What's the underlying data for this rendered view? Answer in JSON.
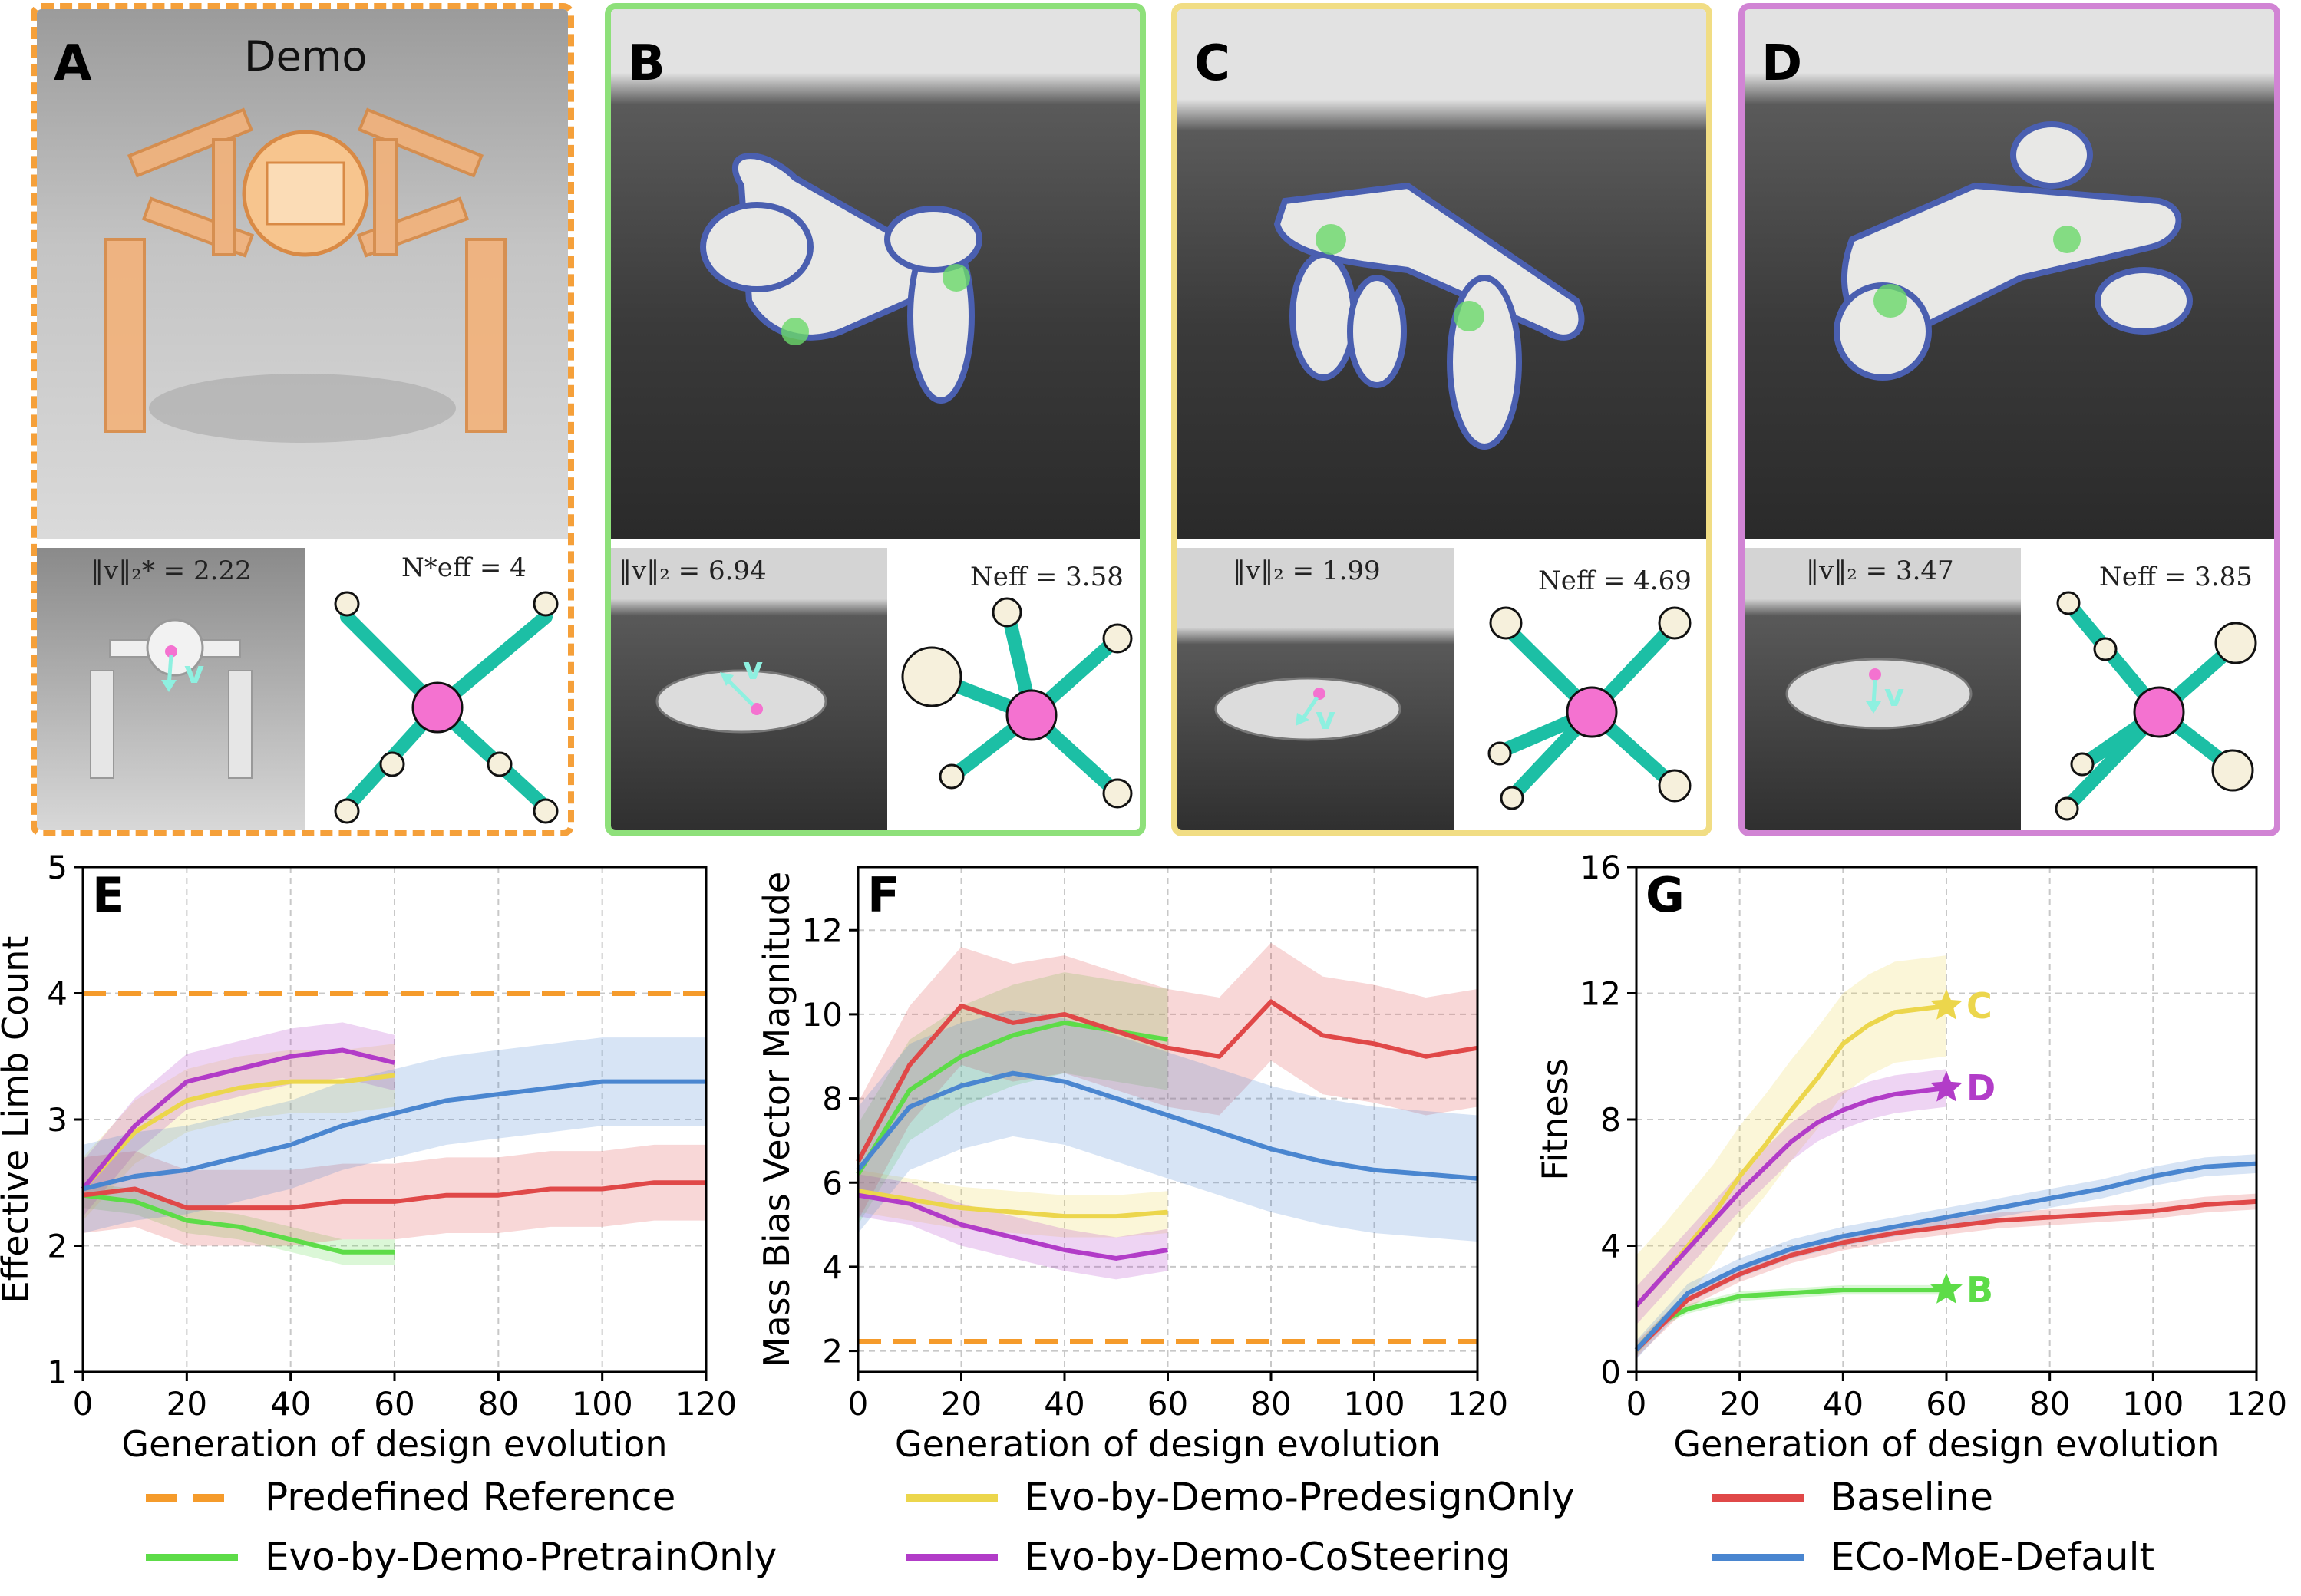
{
  "panels": {
    "A": {
      "label": "A",
      "title": "Demo",
      "metric_v": "‖v‖₂* = 2.22",
      "metric_n": "N*eff = 4",
      "vec": "v"
    },
    "B": {
      "label": "B",
      "metric_v": "‖v‖₂ = 6.94",
      "metric_n": "Neff = 3.58",
      "vec": "v"
    },
    "C": {
      "label": "C",
      "metric_v": "‖v‖₂ = 1.99",
      "metric_n": "Neff = 4.69",
      "vec": "v"
    },
    "D": {
      "label": "D",
      "metric_v": "‖v‖₂ = 3.47",
      "metric_n": "Neff = 3.85",
      "vec": "v"
    }
  },
  "colors": {
    "reference": "#f59b2b",
    "pretrain": "#5ddc48",
    "predesign": "#ecd64c",
    "costeering": "#b23cc8",
    "baseline": "#e04848",
    "default": "#4a86d0",
    "limb": "#1cbfa5",
    "body": "#f472d0"
  },
  "legend": [
    {
      "label": "Predefined Reference",
      "color": "#f59b2b",
      "dashed": true
    },
    {
      "label": "Evo-by-Demo-PredesignOnly",
      "color": "#ecd64c",
      "dashed": false
    },
    {
      "label": "Baseline",
      "color": "#e04848",
      "dashed": false
    },
    {
      "label": "Evo-by-Demo-PretrainOnly",
      "color": "#5ddc48",
      "dashed": false
    },
    {
      "label": "Evo-by-Demo-CoSteering",
      "color": "#b23cc8",
      "dashed": false
    },
    {
      "label": "ECo-MoE-Default",
      "color": "#4a86d0",
      "dashed": false
    }
  ],
  "chart_data": [
    {
      "type": "line",
      "panel_label": "E",
      "xlabel": "Generation of design evolution",
      "ylabel": "Effective Limb Count",
      "xlim": [
        0,
        120
      ],
      "ylim": [
        1,
        5
      ],
      "xticks": [
        0,
        20,
        40,
        60,
        80,
        100,
        120
      ],
      "yticks": [
        1,
        2,
        3,
        4,
        5
      ],
      "grid": true,
      "reference": 4,
      "series": [
        {
          "name": "Evo-by-Demo-PretrainOnly",
          "x": [
            0,
            10,
            20,
            30,
            40,
            50,
            60
          ],
          "y": [
            2.4,
            2.35,
            2.2,
            2.15,
            2.05,
            1.95,
            1.95
          ],
          "band": 0.1
        },
        {
          "name": "Evo-by-Demo-PredesignOnly",
          "x": [
            0,
            10,
            20,
            30,
            40,
            50,
            60
          ],
          "y": [
            2.45,
            2.9,
            3.15,
            3.25,
            3.3,
            3.3,
            3.35
          ],
          "band": 0.25
        },
        {
          "name": "Evo-by-Demo-CoSteering",
          "x": [
            0,
            10,
            20,
            30,
            40,
            50,
            60
          ],
          "y": [
            2.45,
            2.95,
            3.3,
            3.4,
            3.5,
            3.55,
            3.45
          ],
          "band": 0.22
        },
        {
          "name": "Baseline",
          "x": [
            0,
            10,
            20,
            30,
            40,
            50,
            60,
            70,
            80,
            90,
            100,
            110,
            120
          ],
          "y": [
            2.4,
            2.45,
            2.3,
            2.3,
            2.3,
            2.35,
            2.35,
            2.4,
            2.4,
            2.45,
            2.45,
            2.5,
            2.5
          ],
          "band": 0.3
        },
        {
          "name": "ECo-MoE-Default",
          "x": [
            0,
            10,
            20,
            30,
            40,
            50,
            60,
            70,
            80,
            90,
            100,
            110,
            120
          ],
          "y": [
            2.45,
            2.55,
            2.6,
            2.7,
            2.8,
            2.95,
            3.05,
            3.15,
            3.2,
            3.25,
            3.3,
            3.3,
            3.3
          ],
          "band": 0.35
        }
      ]
    },
    {
      "type": "line",
      "panel_label": "F",
      "xlabel": "Generation of design evolution",
      "ylabel": "Mass Bias Vector Magnitude",
      "xlim": [
        0,
        120
      ],
      "ylim": [
        1.5,
        13.5
      ],
      "xticks": [
        0,
        20,
        40,
        60,
        80,
        100,
        120
      ],
      "yticks": [
        2,
        4,
        6,
        8,
        10,
        12
      ],
      "grid": true,
      "reference": 2.22,
      "series": [
        {
          "name": "Evo-by-Demo-PretrainOnly",
          "x": [
            0,
            10,
            20,
            30,
            40,
            50,
            60
          ],
          "y": [
            6.2,
            8.2,
            9.0,
            9.5,
            9.8,
            9.6,
            9.4
          ],
          "band": 1.2
        },
        {
          "name": "Evo-by-Demo-PredesignOnly",
          "x": [
            0,
            10,
            20,
            30,
            40,
            50,
            60
          ],
          "y": [
            5.8,
            5.6,
            5.4,
            5.3,
            5.2,
            5.2,
            5.3
          ],
          "band": 0.5
        },
        {
          "name": "Evo-by-Demo-CoSteering",
          "x": [
            0,
            10,
            20,
            30,
            40,
            50,
            60
          ],
          "y": [
            5.7,
            5.5,
            5.0,
            4.7,
            4.4,
            4.2,
            4.4
          ],
          "band": 0.5
        },
        {
          "name": "Baseline",
          "x": [
            0,
            10,
            20,
            30,
            40,
            50,
            60,
            70,
            80,
            90,
            100,
            110,
            120
          ],
          "y": [
            6.5,
            8.8,
            10.2,
            9.8,
            10.0,
            9.6,
            9.2,
            9.0,
            10.3,
            9.5,
            9.3,
            9.0,
            9.2
          ],
          "band": 1.4
        },
        {
          "name": "ECo-MoE-Default",
          "x": [
            0,
            10,
            20,
            30,
            40,
            50,
            60,
            70,
            80,
            90,
            100,
            110,
            120
          ],
          "y": [
            6.3,
            7.8,
            8.3,
            8.6,
            8.4,
            8.0,
            7.6,
            7.2,
            6.8,
            6.5,
            6.3,
            6.2,
            6.1
          ],
          "band": 1.5
        }
      ]
    },
    {
      "type": "line",
      "panel_label": "G",
      "xlabel": "Generation of design evolution",
      "ylabel": "Fitness",
      "xlim": [
        0,
        120
      ],
      "ylim": [
        0,
        16
      ],
      "xticks": [
        0,
        20,
        40,
        60,
        80,
        100,
        120
      ],
      "yticks": [
        0,
        4,
        8,
        12,
        16
      ],
      "grid": true,
      "series": [
        {
          "name": "Evo-by-Demo-PretrainOnly",
          "x": [
            0,
            5,
            10,
            15,
            20,
            30,
            40,
            50,
            60
          ],
          "y": [
            0.7,
            1.6,
            2.0,
            2.2,
            2.4,
            2.5,
            2.6,
            2.6,
            2.6
          ],
          "band": 0.15
        },
        {
          "name": "Evo-by-Demo-PredesignOnly",
          "x": [
            0,
            5,
            10,
            15,
            20,
            25,
            30,
            35,
            40,
            45,
            50,
            55,
            60
          ],
          "y": [
            2.1,
            3.0,
            4.0,
            5.0,
            6.2,
            7.2,
            8.3,
            9.3,
            10.4,
            11.0,
            11.4,
            11.5,
            11.6
          ],
          "band": 1.6
        },
        {
          "name": "Evo-by-Demo-CoSteering",
          "x": [
            0,
            5,
            10,
            15,
            20,
            25,
            30,
            35,
            40,
            45,
            50,
            55,
            60
          ],
          "y": [
            2.1,
            3.0,
            3.9,
            4.8,
            5.7,
            6.5,
            7.3,
            7.9,
            8.3,
            8.6,
            8.8,
            8.9,
            9.0
          ],
          "band": 0.6
        },
        {
          "name": "Baseline",
          "x": [
            0,
            10,
            20,
            30,
            40,
            50,
            60,
            70,
            80,
            90,
            100,
            110,
            120
          ],
          "y": [
            0.7,
            2.3,
            3.1,
            3.7,
            4.1,
            4.4,
            4.6,
            4.8,
            4.9,
            5.0,
            5.1,
            5.3,
            5.4
          ],
          "band": 0.25
        },
        {
          "name": "ECo-MoE-Default",
          "x": [
            0,
            10,
            20,
            30,
            40,
            50,
            60,
            70,
            80,
            90,
            100,
            110,
            120
          ],
          "y": [
            0.7,
            2.5,
            3.3,
            3.9,
            4.3,
            4.6,
            4.9,
            5.2,
            5.5,
            5.8,
            6.2,
            6.5,
            6.6
          ],
          "band": 0.3
        }
      ],
      "endpoint_markers": [
        {
          "label": "C",
          "x": 60,
          "y": 11.6,
          "series": "Evo-by-Demo-PredesignOnly"
        },
        {
          "label": "D",
          "x": 60,
          "y": 9.0,
          "series": "Evo-by-Demo-CoSteering"
        },
        {
          "label": "B",
          "x": 60,
          "y": 2.6,
          "series": "Evo-by-Demo-PretrainOnly"
        }
      ]
    }
  ]
}
